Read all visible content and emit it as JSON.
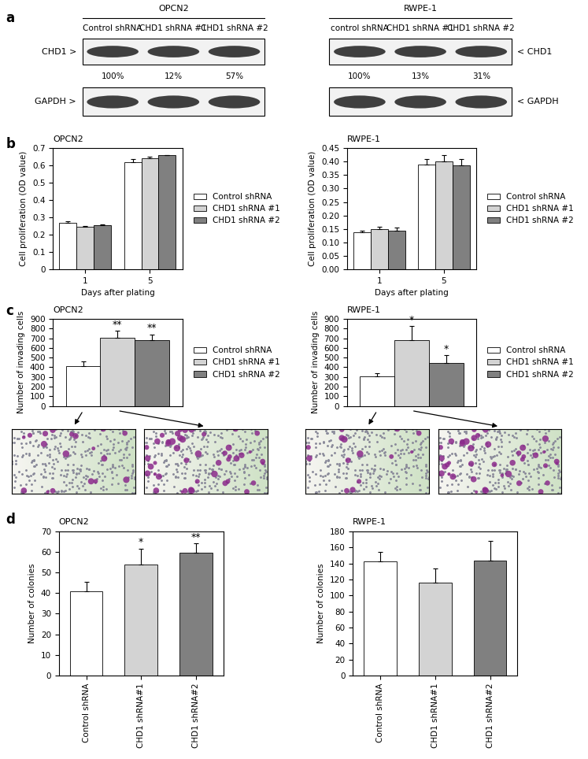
{
  "panel_labels": [
    "a",
    "b",
    "c",
    "d"
  ],
  "blots": [
    {
      "title": "OPCN2",
      "lanes": [
        "Control shRNA",
        "CHD1 shRNA #1",
        "CHD1 shRNA #2"
      ],
      "bands": [
        "CHD1 >",
        "GAPDH >"
      ],
      "quantification": [
        "100%",
        "12%",
        "57%"
      ],
      "label_side": "left"
    },
    {
      "title": "RWPE-1",
      "lanes": [
        "control shRNA",
        "CHD1 shRNA #1",
        "CHD1 shRNA #2"
      ],
      "bands": [
        "< CHD1",
        "< GAPDH"
      ],
      "quantification": [
        "100%",
        "13%",
        "31%"
      ],
      "label_side": "right"
    }
  ],
  "chart_data": [
    {
      "type": "bar",
      "title": "OPCN2",
      "categories": [
        "1",
        "5"
      ],
      "x_label": "Days after plating",
      "y_label": "Cell proliferation (OD value)",
      "ylim": [
        0,
        0.7
      ],
      "yticks": [
        0,
        0.1,
        0.2,
        0.3,
        0.4,
        0.5,
        0.6,
        0.7
      ],
      "legend": "right",
      "series": [
        {
          "name": "Control shRNA",
          "color": "#ffffff",
          "values": [
            0.27,
            0.62
          ],
          "errors": [
            0.008,
            0.018
          ]
        },
        {
          "name": "CHD1 shRNA #1",
          "color": "#d3d3d3",
          "values": [
            0.245,
            0.642
          ],
          "errors": [
            0.004,
            0.006
          ]
        },
        {
          "name": "CHD1 shRNA #2",
          "color": "#808080",
          "values": [
            0.255,
            0.658
          ],
          "errors": [
            0.006,
            0.0
          ]
        }
      ]
    },
    {
      "type": "bar",
      "title": "RWPE-1",
      "categories": [
        "1",
        "5"
      ],
      "x_label": "Days after plating",
      "y_label": "Cell proliferation (OD value)",
      "ylim": [
        0,
        0.45
      ],
      "yticks": [
        {
          "value": 0,
          "label": "0.00"
        },
        {
          "value": 0.05,
          "label": "0.05"
        },
        {
          "value": 0.1,
          "label": "0.10"
        },
        {
          "value": 0.15,
          "label": "0.15"
        },
        {
          "value": 0.2,
          "label": "0.20"
        },
        {
          "value": 0.25,
          "label": "0.25"
        },
        {
          "value": 0.3,
          "label": "0.30"
        },
        {
          "value": 0.35,
          "label": "0.35"
        },
        {
          "value": 0.4,
          "label": "0.40"
        },
        {
          "value": 0.45,
          "label": "0.45"
        }
      ],
      "legend": "right",
      "series": [
        {
          "name": "Control shRNA",
          "color": "#ffffff",
          "values": [
            0.137,
            0.39
          ],
          "errors": [
            0.006,
            0.02
          ]
        },
        {
          "name": "CHD1 shRNA #1",
          "color": "#d3d3d3",
          "values": [
            0.15,
            0.4
          ],
          "errors": [
            0.008,
            0.025
          ]
        },
        {
          "name": "CHD1 shRNA #2",
          "color": "#808080",
          "values": [
            0.145,
            0.385
          ],
          "errors": [
            0.01,
            0.025
          ]
        }
      ]
    },
    {
      "type": "bar",
      "title": "OPCN2",
      "categories": [
        null
      ],
      "y_label": "Number of invading cells",
      "ylim": [
        0,
        900
      ],
      "yticks": [
        0,
        100,
        200,
        300,
        400,
        500,
        600,
        700,
        800,
        900
      ],
      "tick_labels": "y",
      "legend": "right",
      "series": [
        {
          "name": "Control shRNA",
          "color": "#ffffff",
          "values": [
            415
          ],
          "errors": [
            45
          ]
        },
        {
          "name": "CHD1 shRNA #1",
          "color": "#d3d3d3",
          "values": [
            705
          ],
          "errors": [
            70
          ],
          "annotations": [
            "**"
          ]
        },
        {
          "name": "CHD1 shRNA #2",
          "color": "#808080",
          "values": [
            680
          ],
          "errors": [
            60
          ],
          "annotations": [
            "**"
          ]
        }
      ]
    },
    {
      "type": "bar",
      "title": "RWPE-1",
      "categories": [
        null
      ],
      "y_label": "Number of invading cells",
      "ylim": [
        0,
        900
      ],
      "yticks": [
        0,
        100,
        200,
        300,
        400,
        500,
        600,
        700,
        800,
        900
      ],
      "tick_labels": "y",
      "legend": "right",
      "series": [
        {
          "name": "Control shRNA",
          "color": "#ffffff",
          "values": [
            305
          ],
          "errors": [
            30
          ]
        },
        {
          "name": "CHD1 shRNA #1",
          "color": "#d3d3d3",
          "values": [
            680
          ],
          "errors": [
            145
          ],
          "annotations": [
            "*"
          ]
        },
        {
          "name": "CHD1 shRNA #2",
          "color": "#808080",
          "values": [
            445
          ],
          "errors": [
            80
          ],
          "annotations": [
            "*"
          ]
        }
      ]
    },
    {
      "type": "bar",
      "title": "OPCN2",
      "categories": [
        "Control shRNA",
        "CHD1 shRNA#1",
        "CHD1 shRNA#2"
      ],
      "y_label": "Number of colonies",
      "ylim": [
        0,
        70
      ],
      "yticks": [
        0,
        10,
        20,
        30,
        40,
        50,
        60,
        70
      ],
      "values": [
        41,
        54,
        59.5
      ],
      "errors": [
        4.5,
        7.5,
        4.5
      ],
      "colors": [
        "#ffffff",
        "#d3d3d3",
        "#808080"
      ],
      "annotations": [
        null,
        "*",
        "**"
      ]
    },
    {
      "type": "bar",
      "title": "RWPE-1",
      "categories": [
        "Control shRNA",
        "CHD1 shRNA#1",
        "CHD1 shRNA#2"
      ],
      "y_label": "Number of colonies",
      "ylim": [
        0,
        180
      ],
      "yticks": [
        0,
        20,
        40,
        60,
        80,
        100,
        120,
        140,
        160,
        180
      ],
      "values": [
        142,
        116,
        143
      ],
      "errors": [
        12,
        18,
        25
      ],
      "colors": [
        "#ffffff",
        "#d3d3d3",
        "#808080"
      ]
    }
  ]
}
